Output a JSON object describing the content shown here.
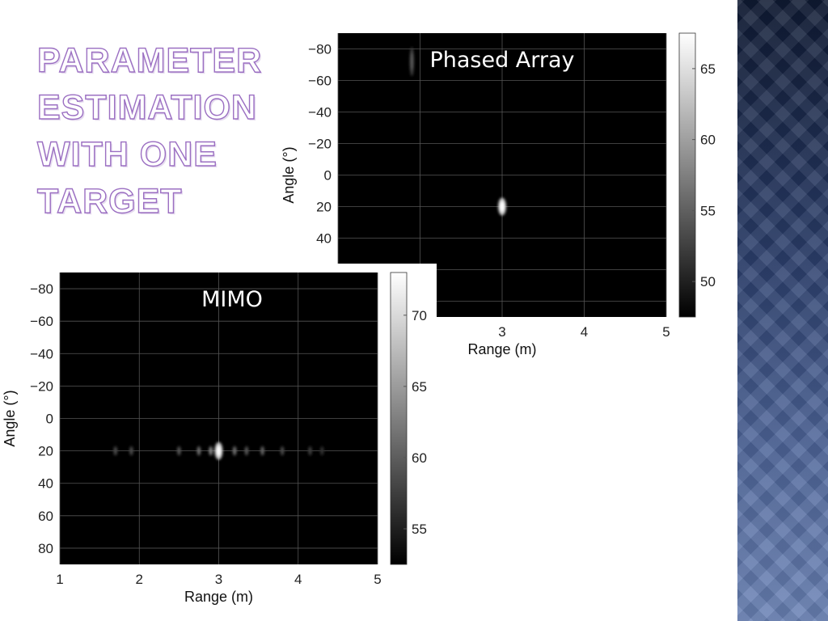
{
  "slide": {
    "title_lines": [
      "PARAMETER",
      "ESTIMATION",
      "WITH ONE",
      "TARGET"
    ]
  },
  "colors": {
    "title_outline": "#9b6fc2",
    "plot_background": "#000000",
    "grid": "#555555",
    "band_top": "#0f1a33",
    "band_bottom": "#6a82b5"
  },
  "chart_data": [
    {
      "type": "heatmap",
      "label": "Phased Array",
      "xlabel": "Range (m)",
      "ylabel": "Angle (°)",
      "xlim": [
        1,
        5
      ],
      "ylim": [
        -90,
        90
      ],
      "y_reversed": true,
      "xticks": [
        3,
        4,
        5
      ],
      "yticks": [
        -80,
        -60,
        -40,
        -20,
        0,
        20,
        40
      ],
      "grid": true,
      "colormap": "gray",
      "colorbar": {
        "min": 47.5,
        "max": 67.5,
        "ticks": [
          50,
          55,
          60,
          65
        ]
      },
      "peaks": [
        {
          "x": 3.0,
          "y": 20,
          "value": 67
        },
        {
          "x": 1.9,
          "y": -72,
          "value": 54
        }
      ]
    },
    {
      "type": "heatmap",
      "label": "MIMO",
      "xlabel": "Range (m)",
      "ylabel": "Angle (°)",
      "xlim": [
        1,
        5
      ],
      "ylim": [
        -90,
        90
      ],
      "y_reversed": true,
      "xticks": [
        1,
        2,
        3,
        4,
        5
      ],
      "yticks": [
        -80,
        -60,
        -40,
        -20,
        0,
        20,
        40,
        60,
        80
      ],
      "grid": true,
      "colormap": "gray",
      "colorbar": {
        "min": 52.5,
        "max": 73,
        "ticks": [
          55,
          60,
          65,
          70
        ]
      },
      "peaks": [
        {
          "x": 3.0,
          "y": 20,
          "value": 72
        },
        {
          "x": 1.7,
          "y": 20,
          "value": 58
        },
        {
          "x": 1.9,
          "y": 20,
          "value": 58
        },
        {
          "x": 2.5,
          "y": 20,
          "value": 59
        },
        {
          "x": 2.75,
          "y": 20,
          "value": 61
        },
        {
          "x": 2.9,
          "y": 20,
          "value": 63
        },
        {
          "x": 3.2,
          "y": 20,
          "value": 61
        },
        {
          "x": 3.35,
          "y": 20,
          "value": 59
        },
        {
          "x": 3.55,
          "y": 20,
          "value": 60
        },
        {
          "x": 3.8,
          "y": 20,
          "value": 58
        },
        {
          "x": 4.15,
          "y": 20,
          "value": 57
        },
        {
          "x": 4.3,
          "y": 20,
          "value": 56
        }
      ]
    }
  ]
}
